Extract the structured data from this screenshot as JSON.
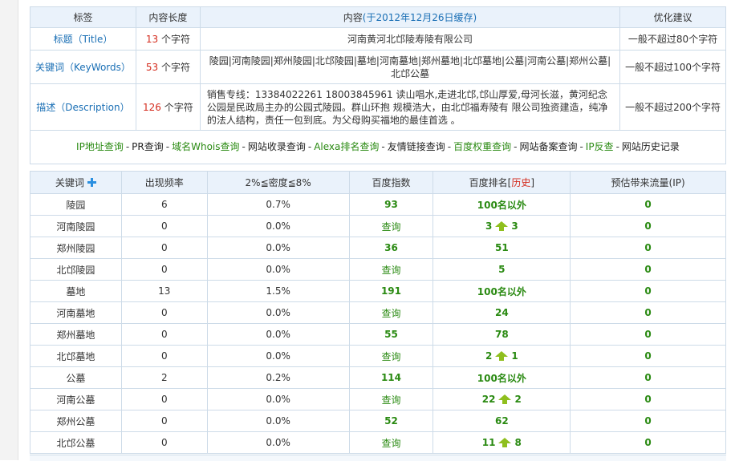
{
  "info": {
    "headers": {
      "label": "标签",
      "length": "内容长度",
      "content_prefix": "内容",
      "content_date": "(于2012年12月26日缓存)",
      "advice": "优化建议"
    },
    "rows": [
      {
        "label": "标题（Title）",
        "count": "13",
        "unit": "个字符",
        "content": "河南黄河北邙陵寿陵有限公司",
        "advice": "一般不超过80个字符"
      },
      {
        "label": "关键词（KeyWords）",
        "count": "53",
        "unit": "个字符",
        "content": "陵园|河南陵园|郑州陵园|北邙陵园|墓地|河南墓地|郑州墓地|北邙墓地|公墓|河南公墓|郑州公墓|北邙公墓",
        "advice": "一般不超过100个字符"
      },
      {
        "label": "描述（Description）",
        "count": "126",
        "unit": "个字符",
        "content": "销售专线：13384022261 18003845961 读山唱水,走进北邙,邙山厚爱,母河长滋，黄河纪念公园是民政局主办的公园式陵园。群山环抱 规模浩大，由北邙福寿陵有 限公司独资建造，纯净的法人结构，责任一包到底。为父母购买福地的最佳首选 。",
        "advice": "一般不超过200个字符"
      }
    ],
    "links": [
      {
        "text": "IP地址查询",
        "style": "green"
      },
      {
        "text": "PR查询",
        "style": "dark"
      },
      {
        "text": "域名Whois查询",
        "style": "green"
      },
      {
        "text": "网站收录查询",
        "style": "dark"
      },
      {
        "text": "Alexa排名查询",
        "style": "green"
      },
      {
        "text": "友情链接查询",
        "style": "dark"
      },
      {
        "text": "百度权重查询",
        "style": "green"
      },
      {
        "text": "网站备案查询",
        "style": "dark"
      },
      {
        "text": "IP反查",
        "style": "green"
      },
      {
        "text": "网站历史记录",
        "style": "dark"
      }
    ]
  },
  "kw": {
    "headers": {
      "keyword": "关键词",
      "freq": "出现频率",
      "density": "2%≦密度≦8%",
      "index": "百度指数",
      "rank_prefix": "百度排名[",
      "rank_history": "历史",
      "rank_suffix": "]",
      "traffic": "预估带来流量(IP)"
    },
    "rows": [
      {
        "keyword": "陵园",
        "freq": "6",
        "density": "0.7%",
        "index": "93",
        "rank": "100名以外",
        "rank_to": "",
        "traffic": "0"
      },
      {
        "keyword": "河南陵园",
        "freq": "0",
        "density": "0.0%",
        "index": "查询",
        "rank": "3",
        "rank_to": "3",
        "traffic": "0"
      },
      {
        "keyword": "郑州陵园",
        "freq": "0",
        "density": "0.0%",
        "index": "36",
        "rank": "51",
        "rank_to": "",
        "traffic": "0"
      },
      {
        "keyword": "北邙陵园",
        "freq": "0",
        "density": "0.0%",
        "index": "查询",
        "rank": "5",
        "rank_to": "",
        "traffic": "0"
      },
      {
        "keyword": "墓地",
        "freq": "13",
        "density": "1.5%",
        "index": "191",
        "rank": "100名以外",
        "rank_to": "",
        "traffic": "0"
      },
      {
        "keyword": "河南墓地",
        "freq": "0",
        "density": "0.0%",
        "index": "查询",
        "rank": "24",
        "rank_to": "",
        "traffic": "0"
      },
      {
        "keyword": "郑州墓地",
        "freq": "0",
        "density": "0.0%",
        "index": "55",
        "rank": "78",
        "rank_to": "",
        "traffic": "0"
      },
      {
        "keyword": "北邙墓地",
        "freq": "0",
        "density": "0.0%",
        "index": "查询",
        "rank": "2",
        "rank_to": "1",
        "traffic": "0"
      },
      {
        "keyword": "公墓",
        "freq": "2",
        "density": "0.2%",
        "index": "114",
        "rank": "100名以外",
        "rank_to": "",
        "traffic": "0"
      },
      {
        "keyword": "河南公墓",
        "freq": "0",
        "density": "0.0%",
        "index": "查询",
        "rank": "22",
        "rank_to": "2",
        "traffic": "0"
      },
      {
        "keyword": "郑州公墓",
        "freq": "0",
        "density": "0.0%",
        "index": "52",
        "rank": "62",
        "rank_to": "",
        "traffic": "0"
      },
      {
        "keyword": "北邙公墓",
        "freq": "0",
        "density": "0.0%",
        "index": "查询",
        "rank": "11",
        "rank_to": "8",
        "traffic": "0"
      }
    ]
  }
}
